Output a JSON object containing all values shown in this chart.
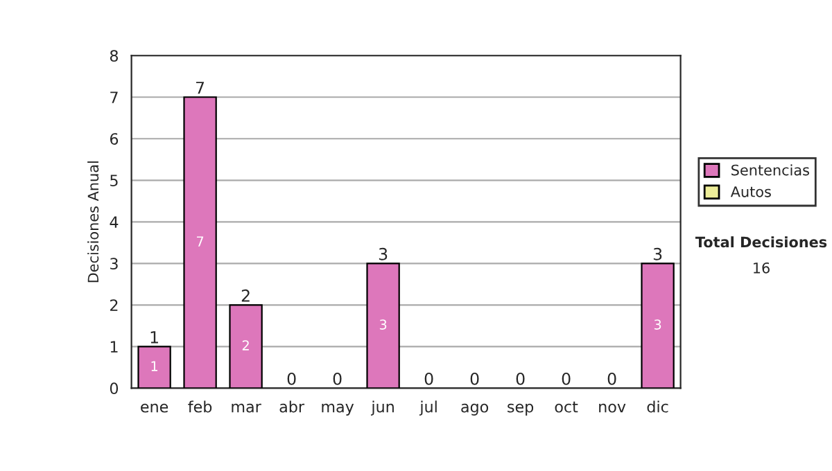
{
  "chart_data": {
    "type": "bar",
    "stacked": true,
    "ylabel": "Decisiones Anual",
    "categories": [
      "ene",
      "feb",
      "mar",
      "abr",
      "may",
      "jun",
      "jul",
      "ago",
      "sep",
      "oct",
      "nov",
      "dic"
    ],
    "series": [
      {
        "name": "Sentencias",
        "color": "#dd77bb",
        "values": [
          1,
          7,
          2,
          0,
          0,
          3,
          0,
          0,
          0,
          0,
          0,
          3
        ],
        "value_labels": [
          "1",
          "7",
          "2",
          null,
          null,
          "3",
          null,
          null,
          null,
          null,
          null,
          "3"
        ]
      },
      {
        "name": "Autos",
        "color": "#eeee99",
        "values": [
          0,
          0,
          0,
          0,
          0,
          0,
          0,
          0,
          0,
          0,
          0,
          0
        ]
      }
    ],
    "totals": [
      "1",
      "7",
      "2",
      "0",
      "0",
      "3",
      "0",
      "0",
      "0",
      "0",
      "0",
      "3"
    ],
    "ylim": [
      0,
      8
    ],
    "yticks": [
      0,
      1,
      2,
      3,
      4,
      5,
      6,
      7,
      8
    ],
    "grid": "y",
    "legend": "right",
    "annotations": [
      "Total Decisiones",
      "16"
    ]
  }
}
